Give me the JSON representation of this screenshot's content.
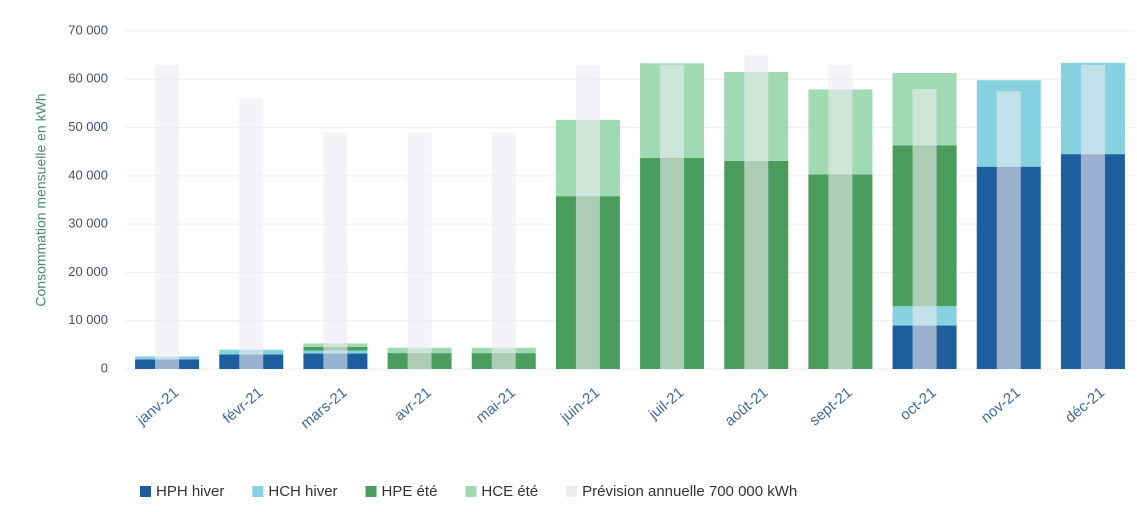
{
  "chart_data": {
    "type": "stacked_bar",
    "y_label": "Consommation mensuelle en kWh",
    "categories": [
      "janv-21",
      "févr-21",
      "mars-21",
      "avr-21",
      "mai-21",
      "juin-21",
      "juil-21",
      "août-21",
      "sept-21",
      "oct-21",
      "nov-21",
      "déc-21"
    ],
    "series": [
      {
        "name": "HPH hiver",
        "color": "#1f5e9e",
        "values": [
          2000,
          3000,
          3200,
          0,
          0,
          0,
          0,
          0,
          0,
          9000,
          41900,
          44500
        ]
      },
      {
        "name": "HCH hiver",
        "color": "#86d2e0",
        "values": [
          600,
          1000,
          600,
          0,
          0,
          0,
          0,
          0,
          0,
          4000,
          17900,
          18900
        ]
      },
      {
        "name": "HPE été",
        "color": "#4b9d5e",
        "values": [
          0,
          0,
          800,
          3300,
          3300,
          35800,
          43700,
          43100,
          40300,
          33300,
          0,
          0
        ]
      },
      {
        "name": "HCE été",
        "color": "#9fdab2",
        "values": [
          0,
          0,
          700,
          1100,
          1100,
          15800,
          19600,
          18400,
          17600,
          15000,
          0,
          0
        ]
      }
    ],
    "overlay_series": {
      "name": "Prévision annuelle 700 000 kWh",
      "color": "#ecebf2",
      "values": [
        63000,
        56000,
        49000,
        49000,
        49000,
        63000,
        63000,
        65000,
        63000,
        58000,
        57500,
        63000
      ]
    },
    "ylim": [
      0,
      70000
    ],
    "yticks": [
      0,
      {
        "value": 10000,
        "label": "10 000"
      },
      {
        "value": 20000,
        "label": "20 000"
      },
      {
        "value": 30000,
        "label": "30 000"
      },
      {
        "value": 40000,
        "label": "40 000"
      },
      {
        "value": 50000,
        "label": "50 000"
      },
      {
        "value": 60000,
        "label": "60 000"
      },
      {
        "value": 70000,
        "label": "70 000"
      }
    ],
    "grid": true
  }
}
